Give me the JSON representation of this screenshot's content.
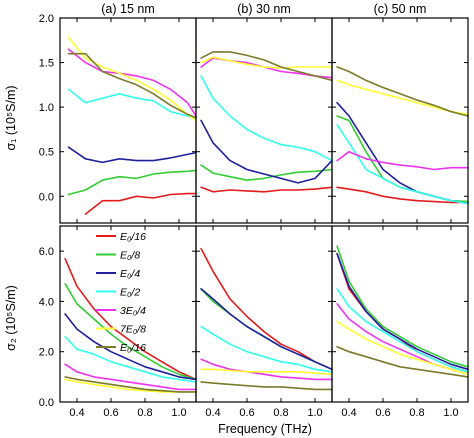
{
  "figure": {
    "panel_titles": [
      "(a) 15 nm",
      "(b) 30 nm",
      "(c) 50 nm"
    ],
    "xlabel": "Frequency (THz)",
    "ylabel_top": "σ₁ (10⁵S/m)",
    "ylabel_bottom": "σ₂ (10⁵S/m)",
    "x_ticks": [
      "0.4",
      "0.6",
      "0.8",
      "1.0"
    ],
    "y_ticks_top": [
      "0.0",
      "0.5",
      "1.0",
      "1.5",
      "2.0"
    ],
    "y_ticks_bottom": [
      "0.0",
      "2.0",
      "4.0",
      "6.0"
    ]
  },
  "legend": [
    {
      "label": "E₀/16",
      "color": "#e41a1c"
    },
    {
      "label": "E₀/8",
      "color": "#33cc33"
    },
    {
      "label": "E₀/4",
      "color": "#1f1fa0"
    },
    {
      "label": "E₀/2",
      "color": "#33ffee"
    },
    {
      "label": "3E₀/4",
      "color": "#ee33ee"
    },
    {
      "label": "7E₀/8",
      "color": "#ffff33"
    },
    {
      "label": "E₀/16",
      "color": "#7a7a2a"
    }
  ],
  "chart_data": [
    {
      "type": "line",
      "panel": "(a) 15 nm",
      "quantity": "sigma1",
      "xlim": [
        0.3,
        1.1
      ],
      "ylim": [
        -0.3,
        2.0
      ],
      "x": [
        0.35,
        0.45,
        0.55,
        0.65,
        0.75,
        0.85,
        0.95,
        1.05,
        1.1
      ],
      "series": [
        {
          "color": "#e41a1c",
          "values": [
            null,
            -0.2,
            -0.05,
            -0.05,
            0.0,
            -0.02,
            0.02,
            0.03,
            0.03
          ]
        },
        {
          "color": "#33cc33",
          "values": [
            0.02,
            0.07,
            0.18,
            0.22,
            0.2,
            0.25,
            0.27,
            0.28,
            0.29
          ]
        },
        {
          "color": "#1f1fa0",
          "values": [
            0.55,
            0.42,
            0.38,
            0.42,
            0.4,
            0.4,
            0.43,
            0.47,
            0.49
          ]
        },
        {
          "color": "#33ffee",
          "values": [
            1.2,
            1.05,
            1.1,
            1.15,
            1.1,
            1.07,
            0.95,
            0.9,
            0.88
          ]
        },
        {
          "color": "#ee33ee",
          "values": [
            1.65,
            1.5,
            1.4,
            1.38,
            1.35,
            1.3,
            1.2,
            1.05,
            0.9
          ]
        },
        {
          "color": "#ffff33",
          "values": [
            1.78,
            1.55,
            1.45,
            1.38,
            1.3,
            1.2,
            1.08,
            0.92,
            0.85
          ]
        },
        {
          "color": "#7a7a2a",
          "values": [
            1.6,
            1.6,
            1.4,
            1.32,
            1.25,
            1.15,
            1.02,
            0.92,
            0.88
          ]
        }
      ]
    },
    {
      "type": "line",
      "panel": "(b) 30 nm",
      "quantity": "sigma1",
      "xlim": [
        0.3,
        1.1
      ],
      "ylim": [
        -0.3,
        2.0
      ],
      "x": [
        0.33,
        0.4,
        0.5,
        0.6,
        0.7,
        0.8,
        0.9,
        1.0,
        1.1
      ],
      "series": [
        {
          "color": "#e41a1c",
          "values": [
            0.1,
            0.05,
            0.07,
            0.06,
            0.05,
            0.07,
            0.07,
            0.08,
            0.1
          ]
        },
        {
          "color": "#33cc33",
          "values": [
            0.35,
            0.26,
            0.22,
            0.18,
            0.2,
            0.24,
            0.27,
            0.28,
            0.3
          ]
        },
        {
          "color": "#1f1fa0",
          "values": [
            0.85,
            0.6,
            0.4,
            0.3,
            0.25,
            0.2,
            0.15,
            0.2,
            0.4
          ]
        },
        {
          "color": "#33ffee",
          "values": [
            1.35,
            1.1,
            0.9,
            0.75,
            0.65,
            0.58,
            0.55,
            0.5,
            0.4
          ]
        },
        {
          "color": "#ee33ee",
          "values": [
            1.45,
            1.55,
            1.52,
            1.5,
            1.45,
            1.4,
            1.38,
            1.35,
            1.33
          ]
        },
        {
          "color": "#ffff33",
          "values": [
            1.5,
            1.56,
            1.52,
            1.48,
            1.45,
            1.44,
            1.45,
            1.45,
            1.45
          ]
        },
        {
          "color": "#7a7a2a",
          "values": [
            1.55,
            1.62,
            1.62,
            1.58,
            1.53,
            1.45,
            1.4,
            1.35,
            1.3
          ]
        }
      ]
    },
    {
      "type": "line",
      "panel": "(c) 50 nm",
      "quantity": "sigma1",
      "xlim": [
        0.3,
        1.1
      ],
      "ylim": [
        -0.3,
        2.0
      ],
      "x": [
        0.33,
        0.4,
        0.5,
        0.6,
        0.7,
        0.8,
        0.9,
        1.0,
        1.1
      ],
      "series": [
        {
          "color": "#e41a1c",
          "values": [
            0.1,
            0.08,
            0.05,
            0.0,
            -0.03,
            -0.05,
            -0.06,
            -0.07,
            -0.07
          ]
        },
        {
          "color": "#33cc33",
          "values": [
            0.9,
            0.85,
            0.5,
            0.2,
            0.1,
            0.05,
            0.0,
            -0.05,
            -0.06
          ]
        },
        {
          "color": "#1f1fa0",
          "values": [
            1.05,
            0.9,
            0.6,
            0.3,
            0.15,
            0.05,
            0.0,
            -0.05,
            -0.08
          ]
        },
        {
          "color": "#33ffee",
          "values": [
            0.8,
            0.6,
            0.3,
            0.2,
            0.1,
            0.05,
            0.0,
            -0.05,
            -0.08
          ]
        },
        {
          "color": "#ee33ee",
          "values": [
            0.4,
            0.5,
            0.42,
            0.38,
            0.35,
            0.33,
            0.3,
            0.32,
            0.32
          ]
        },
        {
          "color": "#ffff33",
          "values": [
            1.3,
            1.25,
            1.2,
            1.15,
            1.1,
            1.05,
            1.0,
            0.95,
            0.92
          ]
        },
        {
          "color": "#7a7a2a",
          "values": [
            1.45,
            1.4,
            1.3,
            1.22,
            1.15,
            1.08,
            1.02,
            0.95,
            0.9
          ]
        }
      ]
    },
    {
      "type": "line",
      "panel": "(a) 15 nm",
      "quantity": "sigma2",
      "xlim": [
        0.3,
        1.1
      ],
      "ylim": [
        0.0,
        7.0
      ],
      "x": [
        0.33,
        0.4,
        0.5,
        0.6,
        0.7,
        0.8,
        0.9,
        1.0,
        1.1
      ],
      "series": [
        {
          "color": "#e41a1c",
          "values": [
            5.7,
            4.6,
            3.7,
            3.0,
            2.5,
            2.0,
            1.6,
            1.2,
            0.9
          ]
        },
        {
          "color": "#33cc33",
          "values": [
            4.7,
            3.9,
            3.3,
            2.7,
            2.2,
            1.8,
            1.4,
            1.1,
            0.9
          ]
        },
        {
          "color": "#1f1fa0",
          "values": [
            3.5,
            2.9,
            2.4,
            2.0,
            1.7,
            1.4,
            1.2,
            1.0,
            0.9
          ]
        },
        {
          "color": "#33ffee",
          "values": [
            2.6,
            2.1,
            1.9,
            1.6,
            1.4,
            1.2,
            1.0,
            0.9,
            0.8
          ]
        },
        {
          "color": "#ee33ee",
          "values": [
            1.5,
            1.2,
            1.0,
            0.9,
            0.8,
            0.7,
            0.6,
            0.5,
            0.5
          ]
        },
        {
          "color": "#ffff33",
          "values": [
            0.9,
            0.8,
            0.7,
            0.6,
            0.5,
            0.45,
            0.4,
            0.4,
            0.4
          ]
        },
        {
          "color": "#7a7a2a",
          "values": [
            1.0,
            0.9,
            0.8,
            0.7,
            0.6,
            0.5,
            0.45,
            0.4,
            0.4
          ]
        }
      ]
    },
    {
      "type": "line",
      "panel": "(b) 30 nm",
      "quantity": "sigma2",
      "xlim": [
        0.3,
        1.1
      ],
      "ylim": [
        0.0,
        7.0
      ],
      "x": [
        0.33,
        0.4,
        0.5,
        0.6,
        0.7,
        0.8,
        0.9,
        1.0,
        1.1
      ],
      "series": [
        {
          "color": "#e41a1c",
          "values": [
            6.1,
            5.2,
            4.1,
            3.4,
            2.8,
            2.3,
            2.0,
            1.6,
            1.3
          ]
        },
        {
          "color": "#33cc33",
          "values": [
            4.5,
            4.0,
            3.5,
            3.0,
            2.6,
            2.2,
            1.9,
            1.6,
            1.3
          ]
        },
        {
          "color": "#1f1fa0",
          "values": [
            4.5,
            4.1,
            3.5,
            3.0,
            2.6,
            2.2,
            1.9,
            1.6,
            1.3
          ]
        },
        {
          "color": "#33ffee",
          "values": [
            3.0,
            2.7,
            2.3,
            2.0,
            1.8,
            1.6,
            1.5,
            1.3,
            1.2
          ]
        },
        {
          "color": "#ee33ee",
          "values": [
            1.7,
            1.5,
            1.3,
            1.2,
            1.1,
            1.0,
            0.95,
            0.9,
            0.9
          ]
        },
        {
          "color": "#ffff33",
          "values": [
            1.3,
            1.3,
            1.25,
            1.2,
            1.2,
            1.2,
            1.2,
            1.15,
            1.1
          ]
        },
        {
          "color": "#7a7a2a",
          "values": [
            0.8,
            0.75,
            0.7,
            0.65,
            0.6,
            0.6,
            0.55,
            0.5,
            0.5
          ]
        }
      ]
    },
    {
      "type": "line",
      "panel": "(c) 50 nm",
      "quantity": "sigma2",
      "xlim": [
        0.3,
        1.1
      ],
      "ylim": [
        0.0,
        7.0
      ],
      "x": [
        0.33,
        0.4,
        0.5,
        0.6,
        0.7,
        0.8,
        0.9,
        1.0,
        1.1
      ],
      "series": [
        {
          "color": "#e41a1c",
          "values": [
            5.9,
            4.5,
            3.6,
            2.9,
            2.5,
            2.0,
            1.7,
            1.4,
            1.2
          ]
        },
        {
          "color": "#33cc33",
          "values": [
            6.2,
            4.8,
            3.7,
            3.0,
            2.6,
            2.2,
            1.9,
            1.6,
            1.4
          ]
        },
        {
          "color": "#1f1fa0",
          "values": [
            5.9,
            4.6,
            3.6,
            2.9,
            2.5,
            2.1,
            1.8,
            1.5,
            1.3
          ]
        },
        {
          "color": "#33ffee",
          "values": [
            4.5,
            3.8,
            3.2,
            2.8,
            2.4,
            2.0,
            1.7,
            1.4,
            1.2
          ]
        },
        {
          "color": "#ee33ee",
          "values": [
            3.9,
            3.3,
            2.8,
            2.4,
            2.1,
            1.8,
            1.5,
            1.3,
            1.1
          ]
        },
        {
          "color": "#ffff33",
          "values": [
            3.2,
            2.9,
            2.5,
            2.2,
            1.9,
            1.7,
            1.5,
            1.3,
            1.1
          ]
        },
        {
          "color": "#7a7a2a",
          "values": [
            2.2,
            2.0,
            1.8,
            1.6,
            1.4,
            1.3,
            1.2,
            1.1,
            1.0
          ]
        }
      ]
    }
  ]
}
